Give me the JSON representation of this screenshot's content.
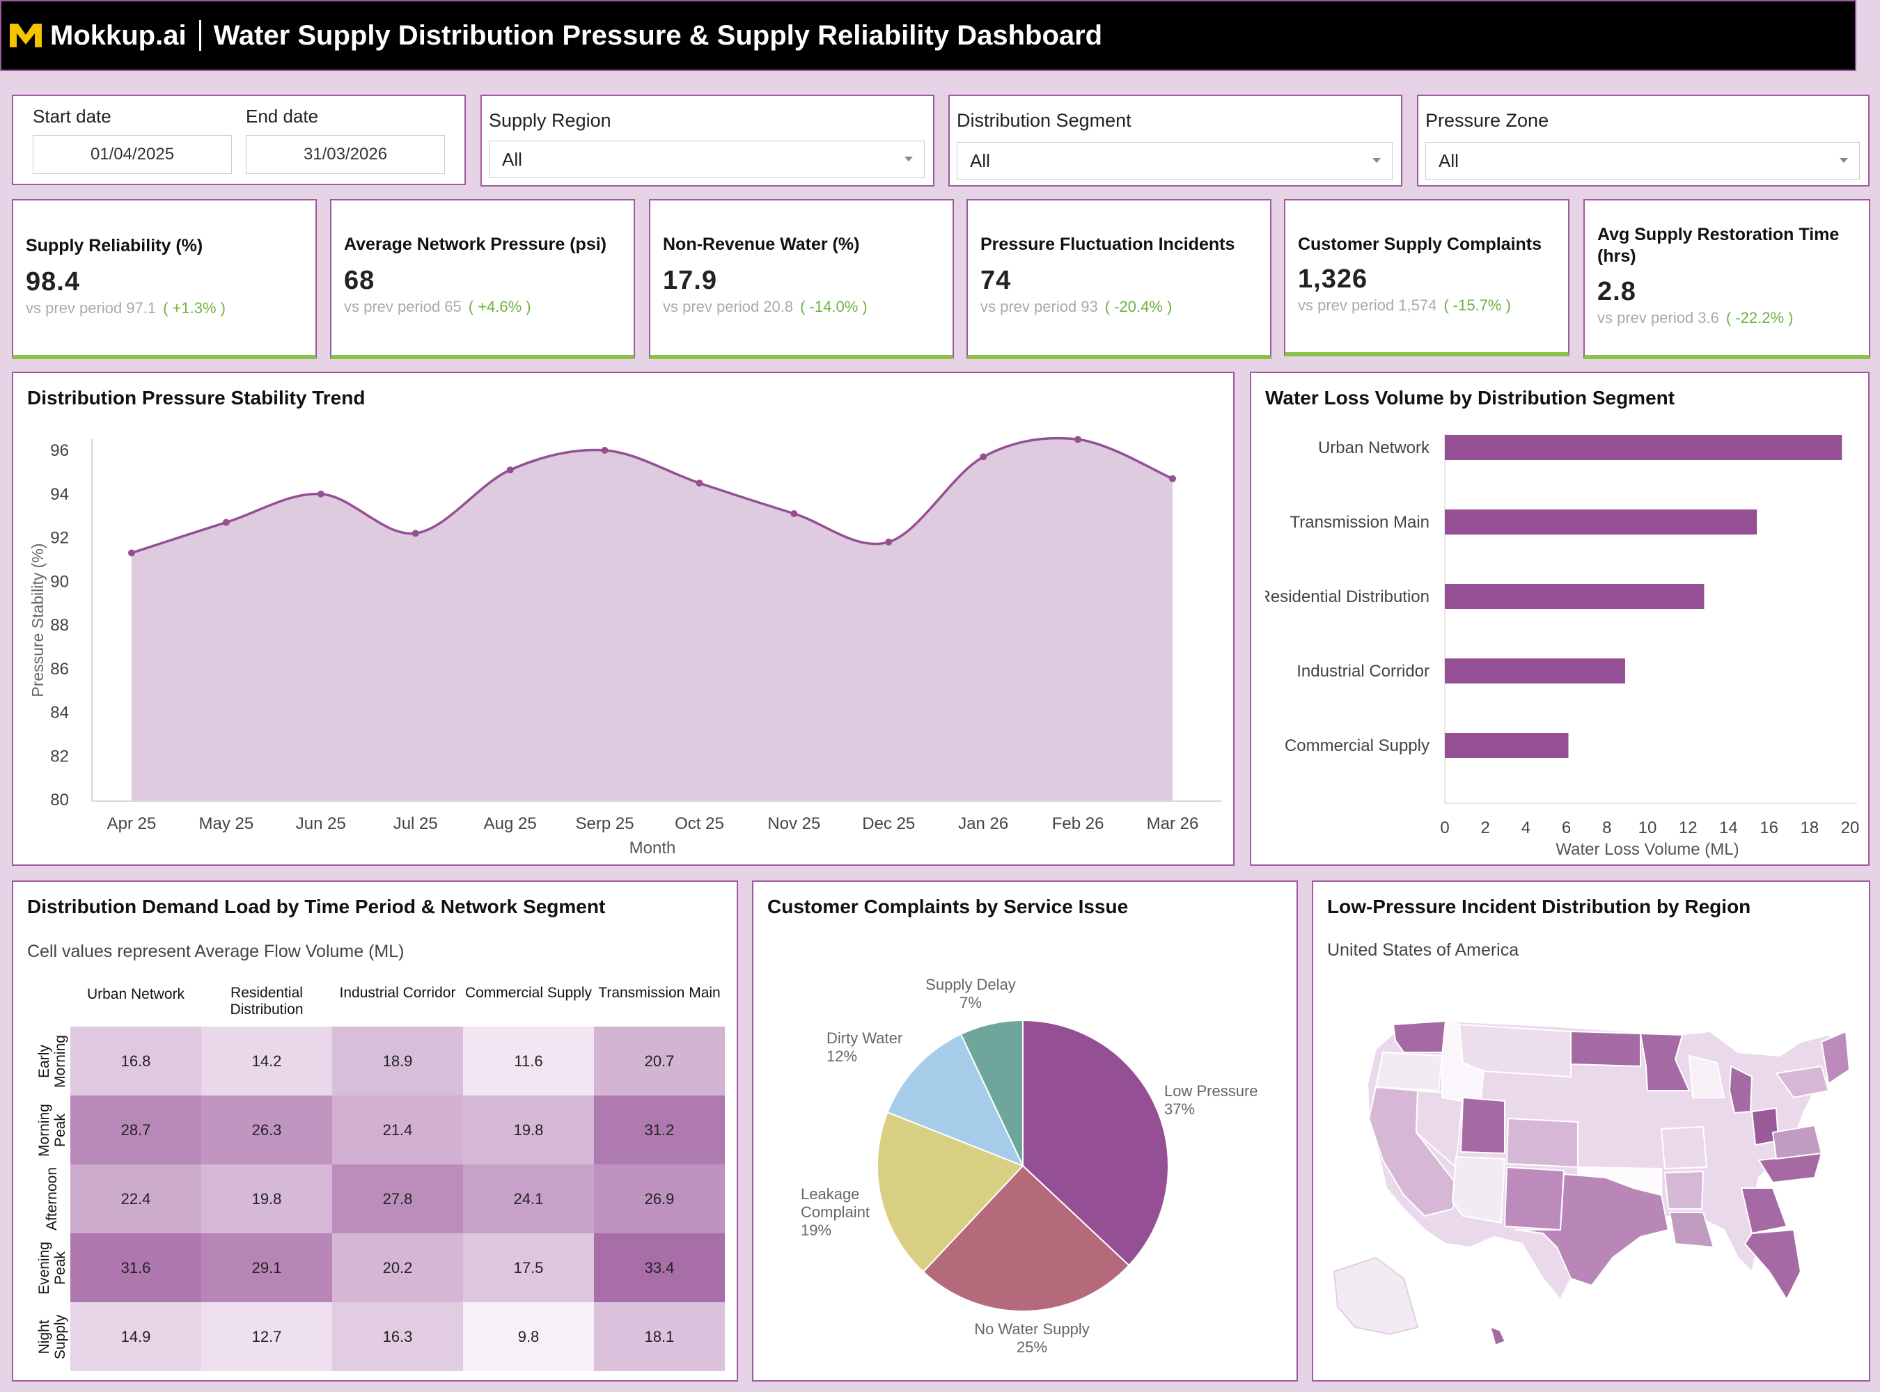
{
  "header": {
    "brand": "Mokkup.ai",
    "title": "Water Supply Distribution Pressure & Supply Reliability Dashboard"
  },
  "filters": {
    "start_label": "Start date",
    "start_value": "01/04/2025",
    "end_label": "End date",
    "end_value": "31/03/2026",
    "region_label": "Supply Region",
    "region_value": "All",
    "segment_label": "Distribution Segment",
    "segment_value": "All",
    "zone_label": "Pressure Zone",
    "zone_value": "All"
  },
  "kpis": [
    {
      "title": "Supply Reliability (%)",
      "value": "98.4",
      "compare": "vs prev period 97.1",
      "change": "( +1.3% )"
    },
    {
      "title": "Average Network Pressure (psi)",
      "value": "68",
      "compare": "vs prev period 65",
      "change": "( +4.6% )"
    },
    {
      "title": "Non-Revenue Water (%)",
      "value": "17.9",
      "compare": "vs prev period 20.8",
      "change": "( -14.0% )"
    },
    {
      "title": "Pressure Fluctuation Incidents",
      "value": "74",
      "compare": "vs prev period 93",
      "change": "( -20.4% )"
    },
    {
      "title": "Customer Supply Complaints",
      "value": "1,326",
      "compare": "vs prev period 1,574",
      "change": "( -15.7% )"
    },
    {
      "title": "Avg Supply Restoration Time (hrs)",
      "value": "2.8",
      "compare": "vs prev period 3.6",
      "change": "( -22.2% )"
    }
  ],
  "panels": {
    "trend_title": "Distribution Pressure Stability Trend",
    "loss_title": "Water Loss Volume by Distribution Segment",
    "heat_title": "Distribution Demand Load by Time Period & Network Segment",
    "heat_subtitle": "Cell values represent Average Flow Volume (ML)",
    "pie_title": "Customer Complaints by Service Issue",
    "map_title": "Low-Pressure Incident Distribution by Region",
    "map_subtitle": "United States of America"
  },
  "colors": {
    "accent": "#954f94",
    "area": "#dfcbdf",
    "positive": "#6db33f"
  },
  "chart_data": [
    {
      "type": "area",
      "title": "Distribution Pressure Stability Trend",
      "xlabel": "Month",
      "ylabel": "Pressure Stability (%)",
      "ylim": [
        80,
        96
      ],
      "yticks": [
        80,
        82,
        84,
        86,
        88,
        90,
        92,
        94,
        96
      ],
      "categories": [
        "Apr 25",
        "May 25",
        "Jun 25",
        "Jul 25",
        "Aug 25",
        "Serp 25",
        "Oct 25",
        "Nov 25",
        "Dec 25",
        "Jan 26",
        "Feb 26",
        "Mar 26"
      ],
      "values": [
        91.3,
        92.7,
        94.0,
        92.2,
        95.1,
        96.0,
        94.5,
        93.1,
        91.8,
        95.7,
        96.5,
        94.7
      ]
    },
    {
      "type": "bar",
      "orientation": "horizontal",
      "title": "Water Loss Volume by Distribution Segment",
      "xlabel": "Water Loss Volume (ML)",
      "xlim": [
        0,
        20
      ],
      "xticks": [
        0,
        2,
        4,
        6,
        8,
        10,
        12,
        14,
        16,
        18,
        20
      ],
      "categories": [
        "Urban Network",
        "Transmission Main",
        "Residential Distribution",
        "Industrial Corridor",
        "Commercial Supply"
      ],
      "values": [
        19.6,
        15.4,
        12.8,
        8.9,
        6.1
      ]
    },
    {
      "type": "heatmap",
      "title": "Distribution Demand Load by Time Period & Network Segment",
      "columns": [
        "Urban Network",
        "Residential Distribution",
        "Industrial Corridor",
        "Commercial Supply",
        "Transmission Main"
      ],
      "rows": [
        "Early Morning",
        "Morning Peak",
        "Afternoon",
        "Evening Peak",
        "Night Supply"
      ],
      "values": [
        [
          "16.8",
          "14.2",
          "18.9",
          "11.6",
          "20.7"
        ],
        [
          "28.7",
          "26.3",
          "21.4",
          "19.8",
          "31.2"
        ],
        [
          "22.4",
          "19.8",
          "27.8",
          "24.1",
          "26.9"
        ],
        [
          "31.6",
          "29.1",
          "20.2",
          "17.5",
          "33.4"
        ],
        [
          "14.9",
          "12.7",
          "16.3",
          "9.8",
          "18.1"
        ]
      ]
    },
    {
      "type": "pie",
      "title": "Customer Complaints by Service Issue",
      "slices": [
        {
          "label": "Low Pressure",
          "value": 37,
          "pct": "37%",
          "color": "#954f94"
        },
        {
          "label": "No Water Supply",
          "value": 25,
          "pct": "25%",
          "color": "#b56a7b"
        },
        {
          "label": "Leakage Complaint",
          "value": 19,
          "pct": "19%",
          "color": "#d9cf82"
        },
        {
          "label": "Dirty Water",
          "value": 12,
          "pct": "12%",
          "color": "#a5cce8"
        },
        {
          "label": "Supply Delay",
          "value": 7,
          "pct": "7%",
          "color": "#6fa69b"
        }
      ]
    }
  ]
}
